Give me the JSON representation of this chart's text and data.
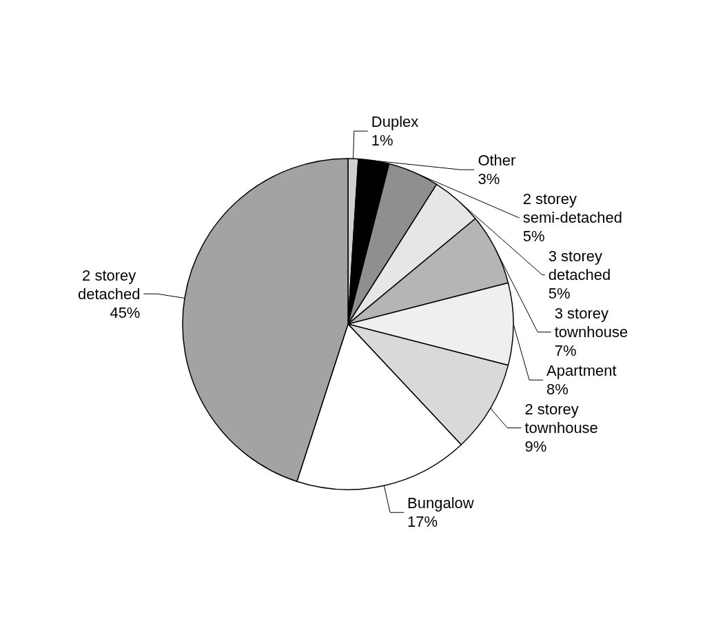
{
  "chart_data": {
    "type": "pie",
    "categories": [
      "Duplex",
      "Other",
      "2 storey semi-detached",
      "3 storey detached",
      "3 storey townhouse",
      "Apartment",
      "2 storey townhouse",
      "Bungalow",
      "2 storey detached"
    ],
    "values": [
      1,
      3,
      5,
      5,
      7,
      8,
      9,
      17,
      45
    ],
    "colors": [
      "#cfcfcf",
      "#000000",
      "#8f8f8f",
      "#e6e6e6",
      "#b5b5b5",
      "#efefef",
      "#d9d9d9",
      "#ffffff",
      "#a3a3a3"
    ],
    "value_labels": [
      "1%",
      "3%",
      "5%",
      "5%",
      "7%",
      "8%",
      "9%",
      "17%",
      "45%"
    ],
    "legend": false
  }
}
